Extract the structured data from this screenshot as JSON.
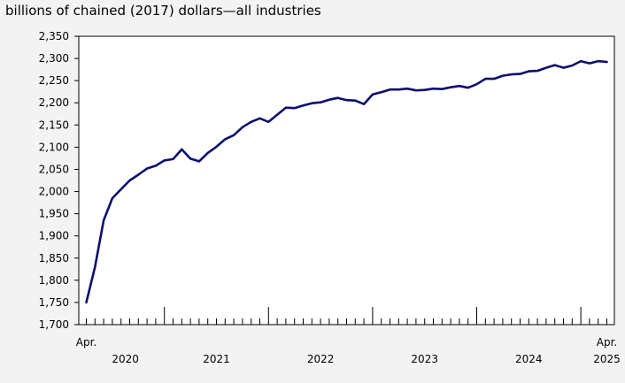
{
  "chart_data": {
    "type": "line",
    "title": "billions of chained (2017) dollars—all industries",
    "xlabel": "",
    "ylabel": "",
    "ylim": [
      1700,
      2350
    ],
    "yticks": [
      "1,700",
      "1,750",
      "1,800",
      "1,850",
      "1,900",
      "1,950",
      "2,000",
      "2,050",
      "2,100",
      "2,150",
      "2,200",
      "2,250",
      "2,300",
      "2,350"
    ],
    "x_start_label": "Apr.",
    "x_end_label": "Apr.",
    "year_labels": [
      "2020",
      "2021",
      "2022",
      "2023",
      "2024",
      "2025"
    ],
    "grid": false,
    "line_color": "#0b0f6e",
    "series": [
      {
        "x": [
          "2020-04",
          "2020-05",
          "2020-06",
          "2020-07",
          "2020-08",
          "2020-09",
          "2020-10",
          "2020-11",
          "2020-12",
          "2021-01",
          "2021-02",
          "2021-03",
          "2021-04",
          "2021-05",
          "2021-06",
          "2021-07",
          "2021-08",
          "2021-09",
          "2021-10",
          "2021-11",
          "2021-12",
          "2022-01",
          "2022-02",
          "2022-03",
          "2022-04",
          "2022-05",
          "2022-06",
          "2022-07",
          "2022-08",
          "2022-09",
          "2022-10",
          "2022-11",
          "2022-12",
          "2023-01",
          "2023-02",
          "2023-03",
          "2023-04",
          "2023-05",
          "2023-06",
          "2023-07",
          "2023-08",
          "2023-09",
          "2023-10",
          "2023-11",
          "2023-12",
          "2024-01",
          "2024-02",
          "2024-03",
          "2024-04",
          "2024-05",
          "2024-06",
          "2024-07",
          "2024-08",
          "2024-09",
          "2024-10",
          "2024-11",
          "2024-12",
          "2025-01",
          "2025-02",
          "2025-03",
          "2025-04"
        ],
        "values": [
          1750,
          1830,
          1935,
          1985,
          2005,
          2025,
          2038,
          2052,
          2058,
          2070,
          2073,
          2095,
          2074,
          2068,
          2087,
          2101,
          2118,
          2127,
          2145,
          2157,
          2165,
          2157,
          2173,
          2189,
          2188,
          2194,
          2199,
          2201,
          2207,
          2211,
          2206,
          2205,
          2197,
          2219,
          2224,
          2230,
          2230,
          2232,
          2228,
          2229,
          2232,
          2231,
          2235,
          2238,
          2234,
          2242,
          2254,
          2254,
          2261,
          2264,
          2265,
          2271,
          2272,
          2279,
          2285,
          2279,
          2284,
          2294,
          2289,
          2294,
          2292
        ]
      }
    ]
  }
}
